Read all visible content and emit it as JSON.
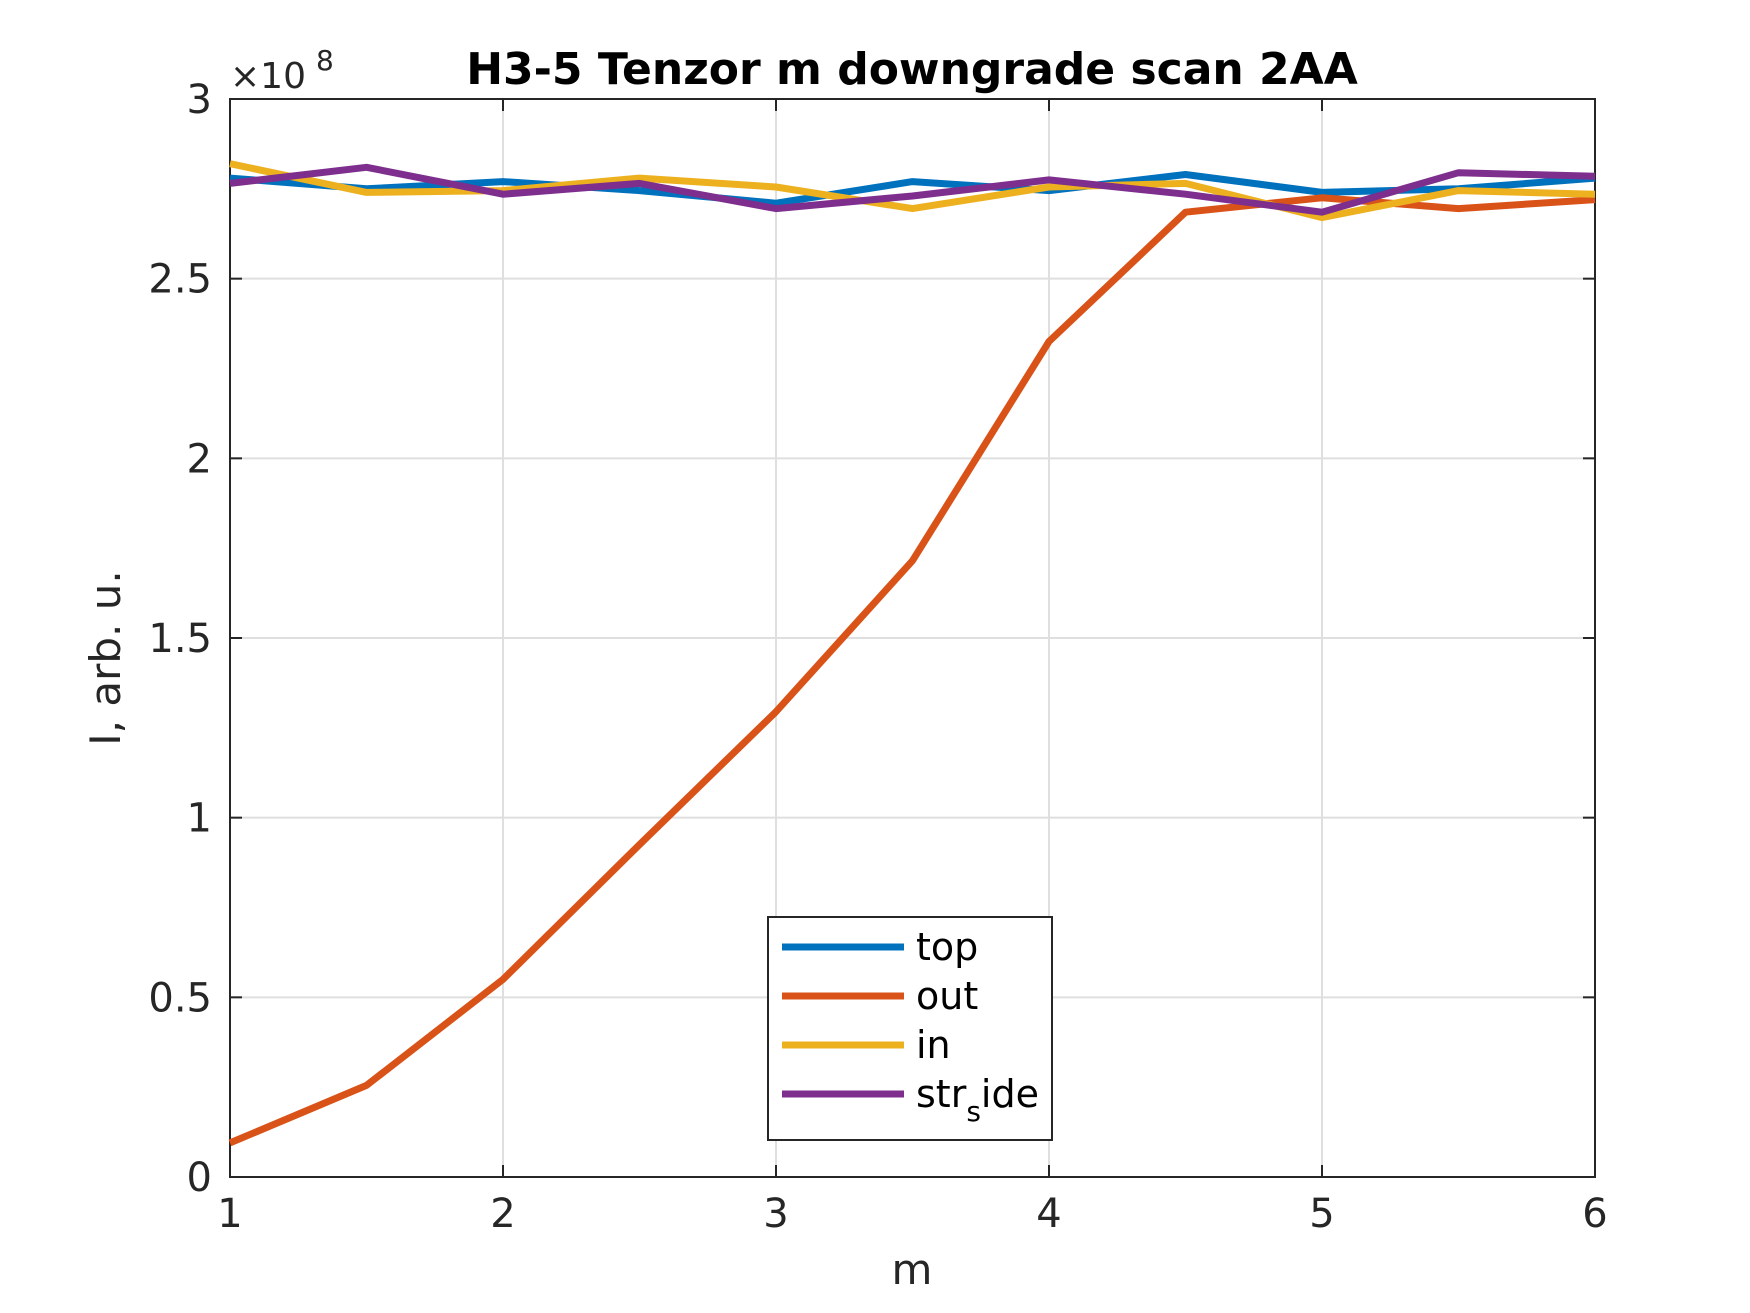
{
  "chart_data": {
    "type": "line",
    "title": "H3-5 Tenzor m downgrade scan 2AA",
    "xlabel": "m",
    "ylabel": "I, arb. u.",
    "y_exponent_label": "×10",
    "y_exponent_power": "8",
    "xlim": [
      1,
      6
    ],
    "ylim": [
      0,
      3
    ],
    "y_scale_factor": 100000000,
    "xticks": [
      "1",
      "2",
      "3",
      "4",
      "5",
      "6"
    ],
    "yticks": [
      "0",
      "0.5",
      "1",
      "1.5",
      "2",
      "2.5",
      "3"
    ],
    "grid": true,
    "legend_position": "bottom-center",
    "x": [
      1,
      1.5,
      2,
      2.5,
      3,
      3.5,
      4,
      4.5,
      5,
      5.5,
      6
    ],
    "series": [
      {
        "name": "top",
        "color": "#0072BD",
        "values": [
          2.78,
          2.75,
          2.77,
          2.745,
          2.71,
          2.77,
          2.745,
          2.79,
          2.74,
          2.75,
          2.78
        ]
      },
      {
        "name": "out",
        "color": "#D95319",
        "values": [
          0.095,
          0.255,
          0.55,
          0.925,
          1.295,
          1.715,
          2.325,
          2.685,
          2.725,
          2.695,
          2.72
        ]
      },
      {
        "name": "in",
        "color": "#EDB120",
        "values": [
          2.82,
          2.74,
          2.745,
          2.78,
          2.755,
          2.695,
          2.755,
          2.765,
          2.67,
          2.745,
          2.735
        ]
      },
      {
        "name": "str_side",
        "color": "#7E2F8E",
        "values": [
          2.765,
          2.81,
          2.735,
          2.765,
          2.695,
          2.73,
          2.775,
          2.735,
          2.685,
          2.795,
          2.785
        ]
      }
    ],
    "legend_labels": [
      {
        "main": "top",
        "sub": "",
        "rest": ""
      },
      {
        "main": "out",
        "sub": "",
        "rest": ""
      },
      {
        "main": "in",
        "sub": "",
        "rest": ""
      },
      {
        "main": "str",
        "sub": "s",
        "rest": "ide"
      }
    ]
  }
}
